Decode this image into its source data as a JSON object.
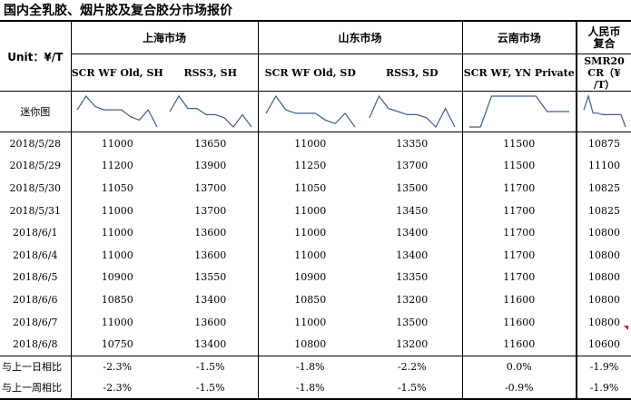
{
  "title": "国内全乳胶、烟片胶及复合胶分市场报价",
  "unit_label": "Unit：¥/T",
  "markets": {
    "shanghai": "上海市场",
    "shandong": "山东市场",
    "yunnan": "云南市场",
    "rmb_line1": "人民币",
    "rmb_line2": "复合"
  },
  "columns": {
    "sh_scr": "SCR WF Old, SH",
    "sh_rss": "RSS3, SH",
    "sd_scr": "SCR WF Old, SD",
    "sd_rss": "RSS3, SD",
    "yn_scr": "SCR WF, YN Private",
    "smr_line1": "SMR20",
    "smr_line2": "CR（¥",
    "smr_line3": "/T）"
  },
  "sparkline_label": "迷你图",
  "rows": [
    {
      "date": "2018/5/28",
      "sh_scr": "11000",
      "sh_rss": "13650",
      "sd_scr": "11000",
      "sd_rss": "13350",
      "yn_scr": "11500",
      "smr": "10875"
    },
    {
      "date": "2018/5/29",
      "sh_scr": "11200",
      "sh_rss": "13900",
      "sd_scr": "11250",
      "sd_rss": "13700",
      "yn_scr": "11500",
      "smr": "11100"
    },
    {
      "date": "2018/5/30",
      "sh_scr": "11050",
      "sh_rss": "13700",
      "sd_scr": "11050",
      "sd_rss": "13500",
      "yn_scr": "11700",
      "smr": "10825"
    },
    {
      "date": "2018/5/31",
      "sh_scr": "11000",
      "sh_rss": "13700",
      "sd_scr": "11000",
      "sd_rss": "13450",
      "yn_scr": "11700",
      "smr": "10825"
    },
    {
      "date": "2018/6/1",
      "sh_scr": "11000",
      "sh_rss": "13600",
      "sd_scr": "11000",
      "sd_rss": "13400",
      "yn_scr": "11700",
      "smr": "10800"
    },
    {
      "date": "2018/6/4",
      "sh_scr": "11000",
      "sh_rss": "13600",
      "sd_scr": "11000",
      "sd_rss": "13400",
      "yn_scr": "11700",
      "smr": "10800"
    },
    {
      "date": "2018/6/5",
      "sh_scr": "10900",
      "sh_rss": "13550",
      "sd_scr": "10900",
      "sd_rss": "13350",
      "yn_scr": "11700",
      "smr": "10800"
    },
    {
      "date": "2018/6/6",
      "sh_scr": "10850",
      "sh_rss": "13400",
      "sd_scr": "10850",
      "sd_rss": "13200",
      "yn_scr": "11600",
      "smr": "10800"
    },
    {
      "date": "2018/6/7",
      "sh_scr": "11000",
      "sh_rss": "13600",
      "sd_scr": "11000",
      "sd_rss": "13500",
      "yn_scr": "11600",
      "smr": "10800"
    },
    {
      "date": "2018/6/8",
      "sh_scr": "10750",
      "sh_rss": "13400",
      "sd_scr": "10800",
      "sd_rss": "13200",
      "yn_scr": "11600",
      "smr": "10600"
    }
  ],
  "compare": [
    {
      "label": "与上一日相比",
      "sh_scr": "-2.3%",
      "sh_rss": "-1.5%",
      "sd_scr": "-1.8%",
      "sd_rss": "-2.2%",
      "yn_scr": "0.0%",
      "smr": "-1.9%"
    },
    {
      "label": "与上一周相比",
      "sh_scr": "-2.3%",
      "sh_rss": "-1.5%",
      "sd_scr": "-1.8%",
      "sd_rss": "-1.5%",
      "yn_scr": "-0.9%",
      "smr": "-1.9%"
    }
  ],
  "colors": {
    "sparkline": "#3b5f8a",
    "corner_marker": "#e00000"
  }
}
